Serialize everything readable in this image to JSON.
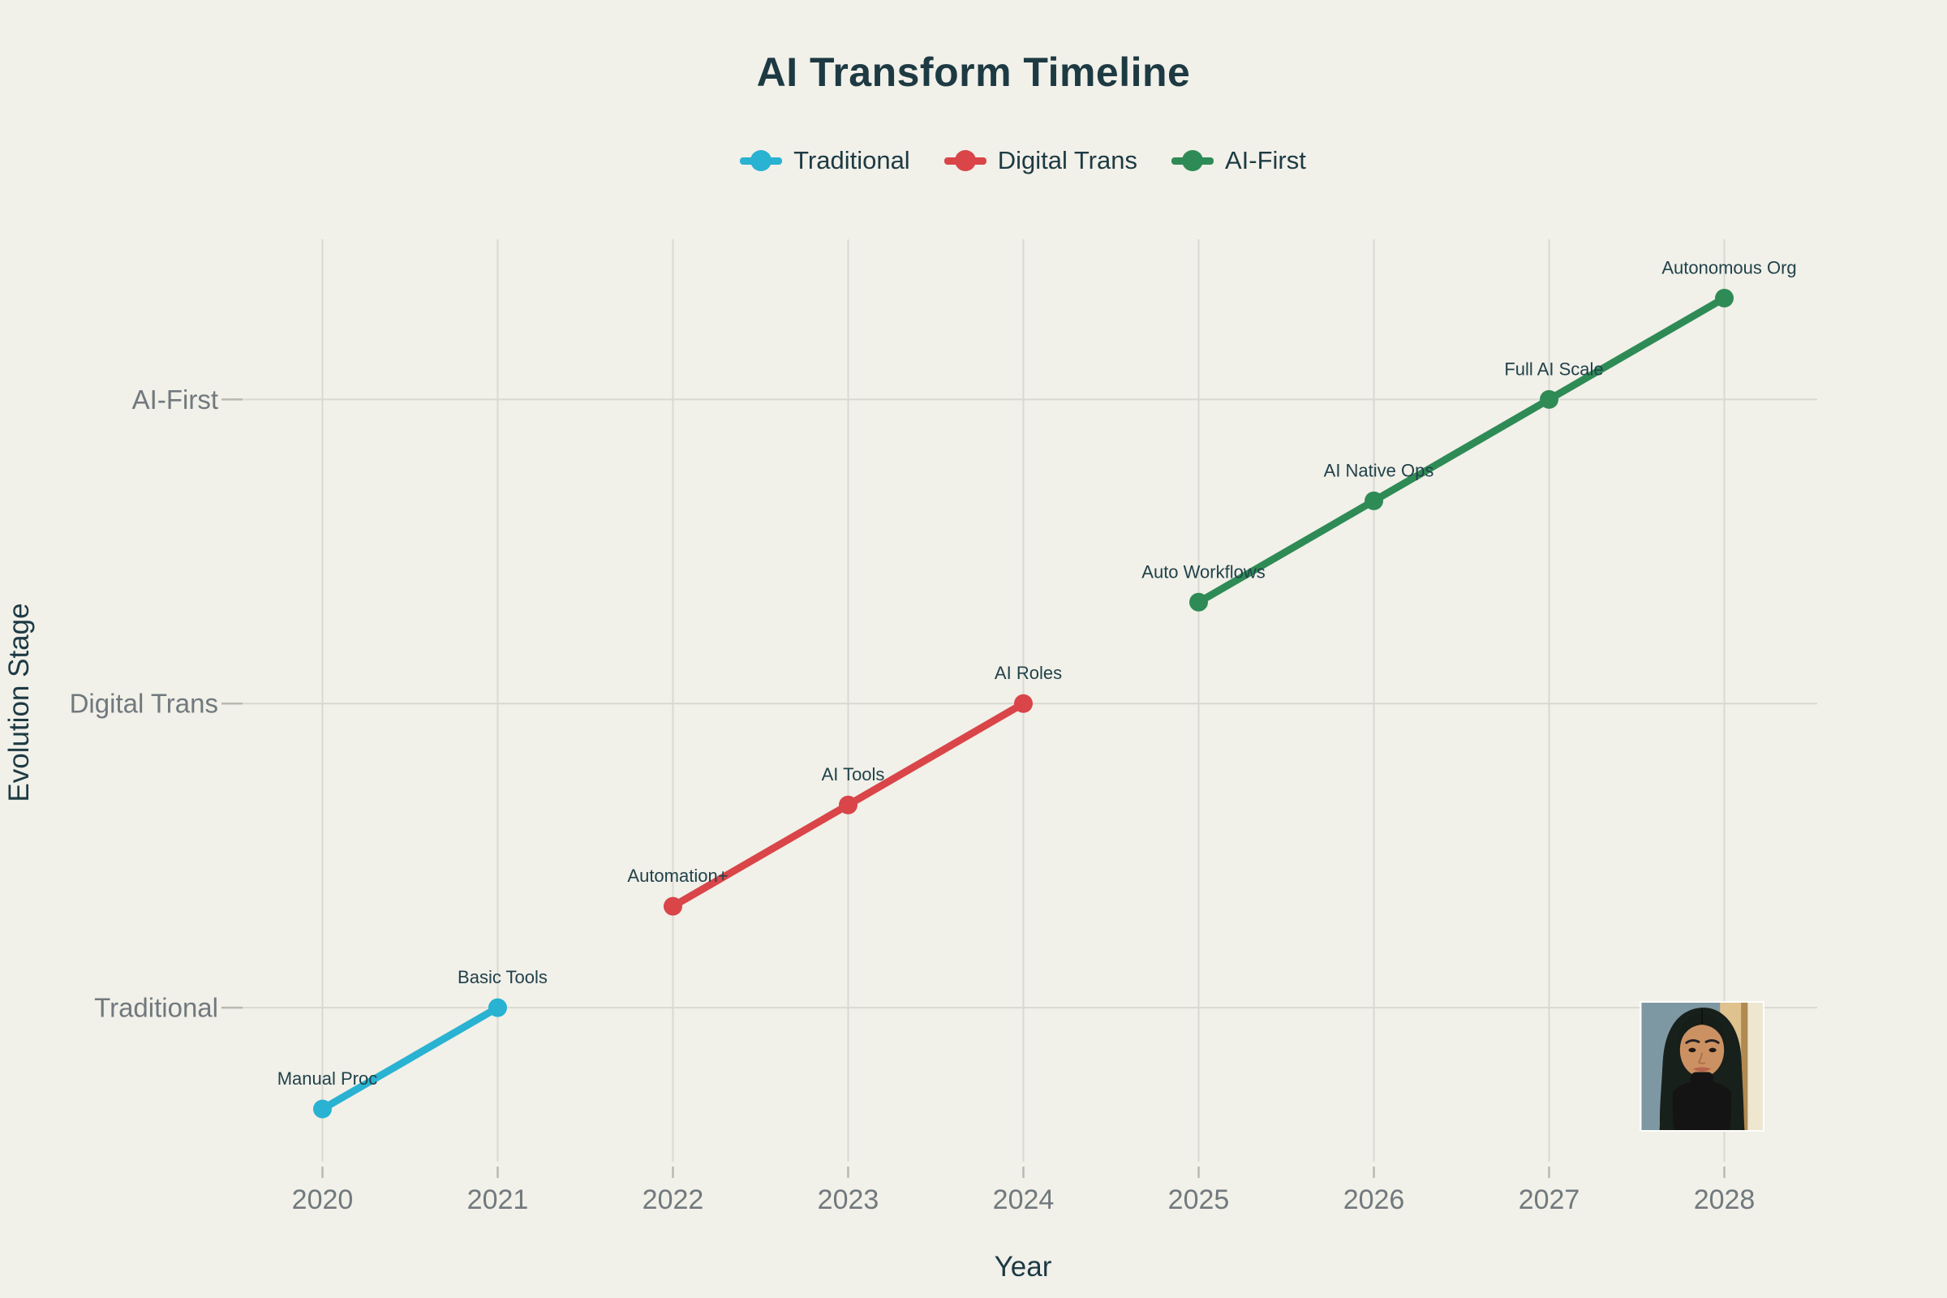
{
  "page": {
    "background": "#F1F0E9"
  },
  "chart_data": {
    "type": "line",
    "title": "AI Transform Timeline",
    "xlabel": "Year",
    "ylabel": "Evolution Stage",
    "xlim": [
      2019.47,
      2028.53
    ],
    "ylim": [
      1.48,
      10.58
    ],
    "x_ticks": [
      2020,
      2021,
      2022,
      2023,
      2024,
      2025,
      2026,
      2027,
      2028
    ],
    "y_ticks": [
      {
        "value": 3,
        "label": "Traditional"
      },
      {
        "value": 6,
        "label": "Digital Trans"
      },
      {
        "value": 9,
        "label": "AI-First"
      }
    ],
    "grid": true,
    "legend_position": "top-center",
    "series": [
      {
        "name": "Traditional",
        "color": "#29B2D1",
        "points": [
          {
            "x": 2020,
            "y": 2,
            "label": "Manual Proc"
          },
          {
            "x": 2021,
            "y": 3,
            "label": "Basic Tools"
          }
        ]
      },
      {
        "name": "Digital Trans",
        "color": "#D94548",
        "points": [
          {
            "x": 2022,
            "y": 4,
            "label": "Automation+"
          },
          {
            "x": 2023,
            "y": 5,
            "label": "AI Tools"
          },
          {
            "x": 2024,
            "y": 6,
            "label": "AI Roles"
          }
        ]
      },
      {
        "name": "AI-First",
        "color": "#2E8B55",
        "points": [
          {
            "x": 2025,
            "y": 7,
            "label": "Auto Workflows"
          },
          {
            "x": 2026,
            "y": 8,
            "label": "AI Native Ops"
          },
          {
            "x": 2027,
            "y": 9,
            "label": "Full AI Scale"
          },
          {
            "x": 2028,
            "y": 10,
            "label": "Autonomous Org"
          }
        ]
      }
    ],
    "colors": {
      "title": "#1D3A43",
      "axis_title": "#1D3A43",
      "tick_label": "#71797D",
      "grid": "#D9D9D2",
      "tick_mark": "#B9B9B2",
      "data_label": "#21424A"
    }
  },
  "images": {
    "avatar": "portrait-illustration-woman-long-dark-hair"
  }
}
